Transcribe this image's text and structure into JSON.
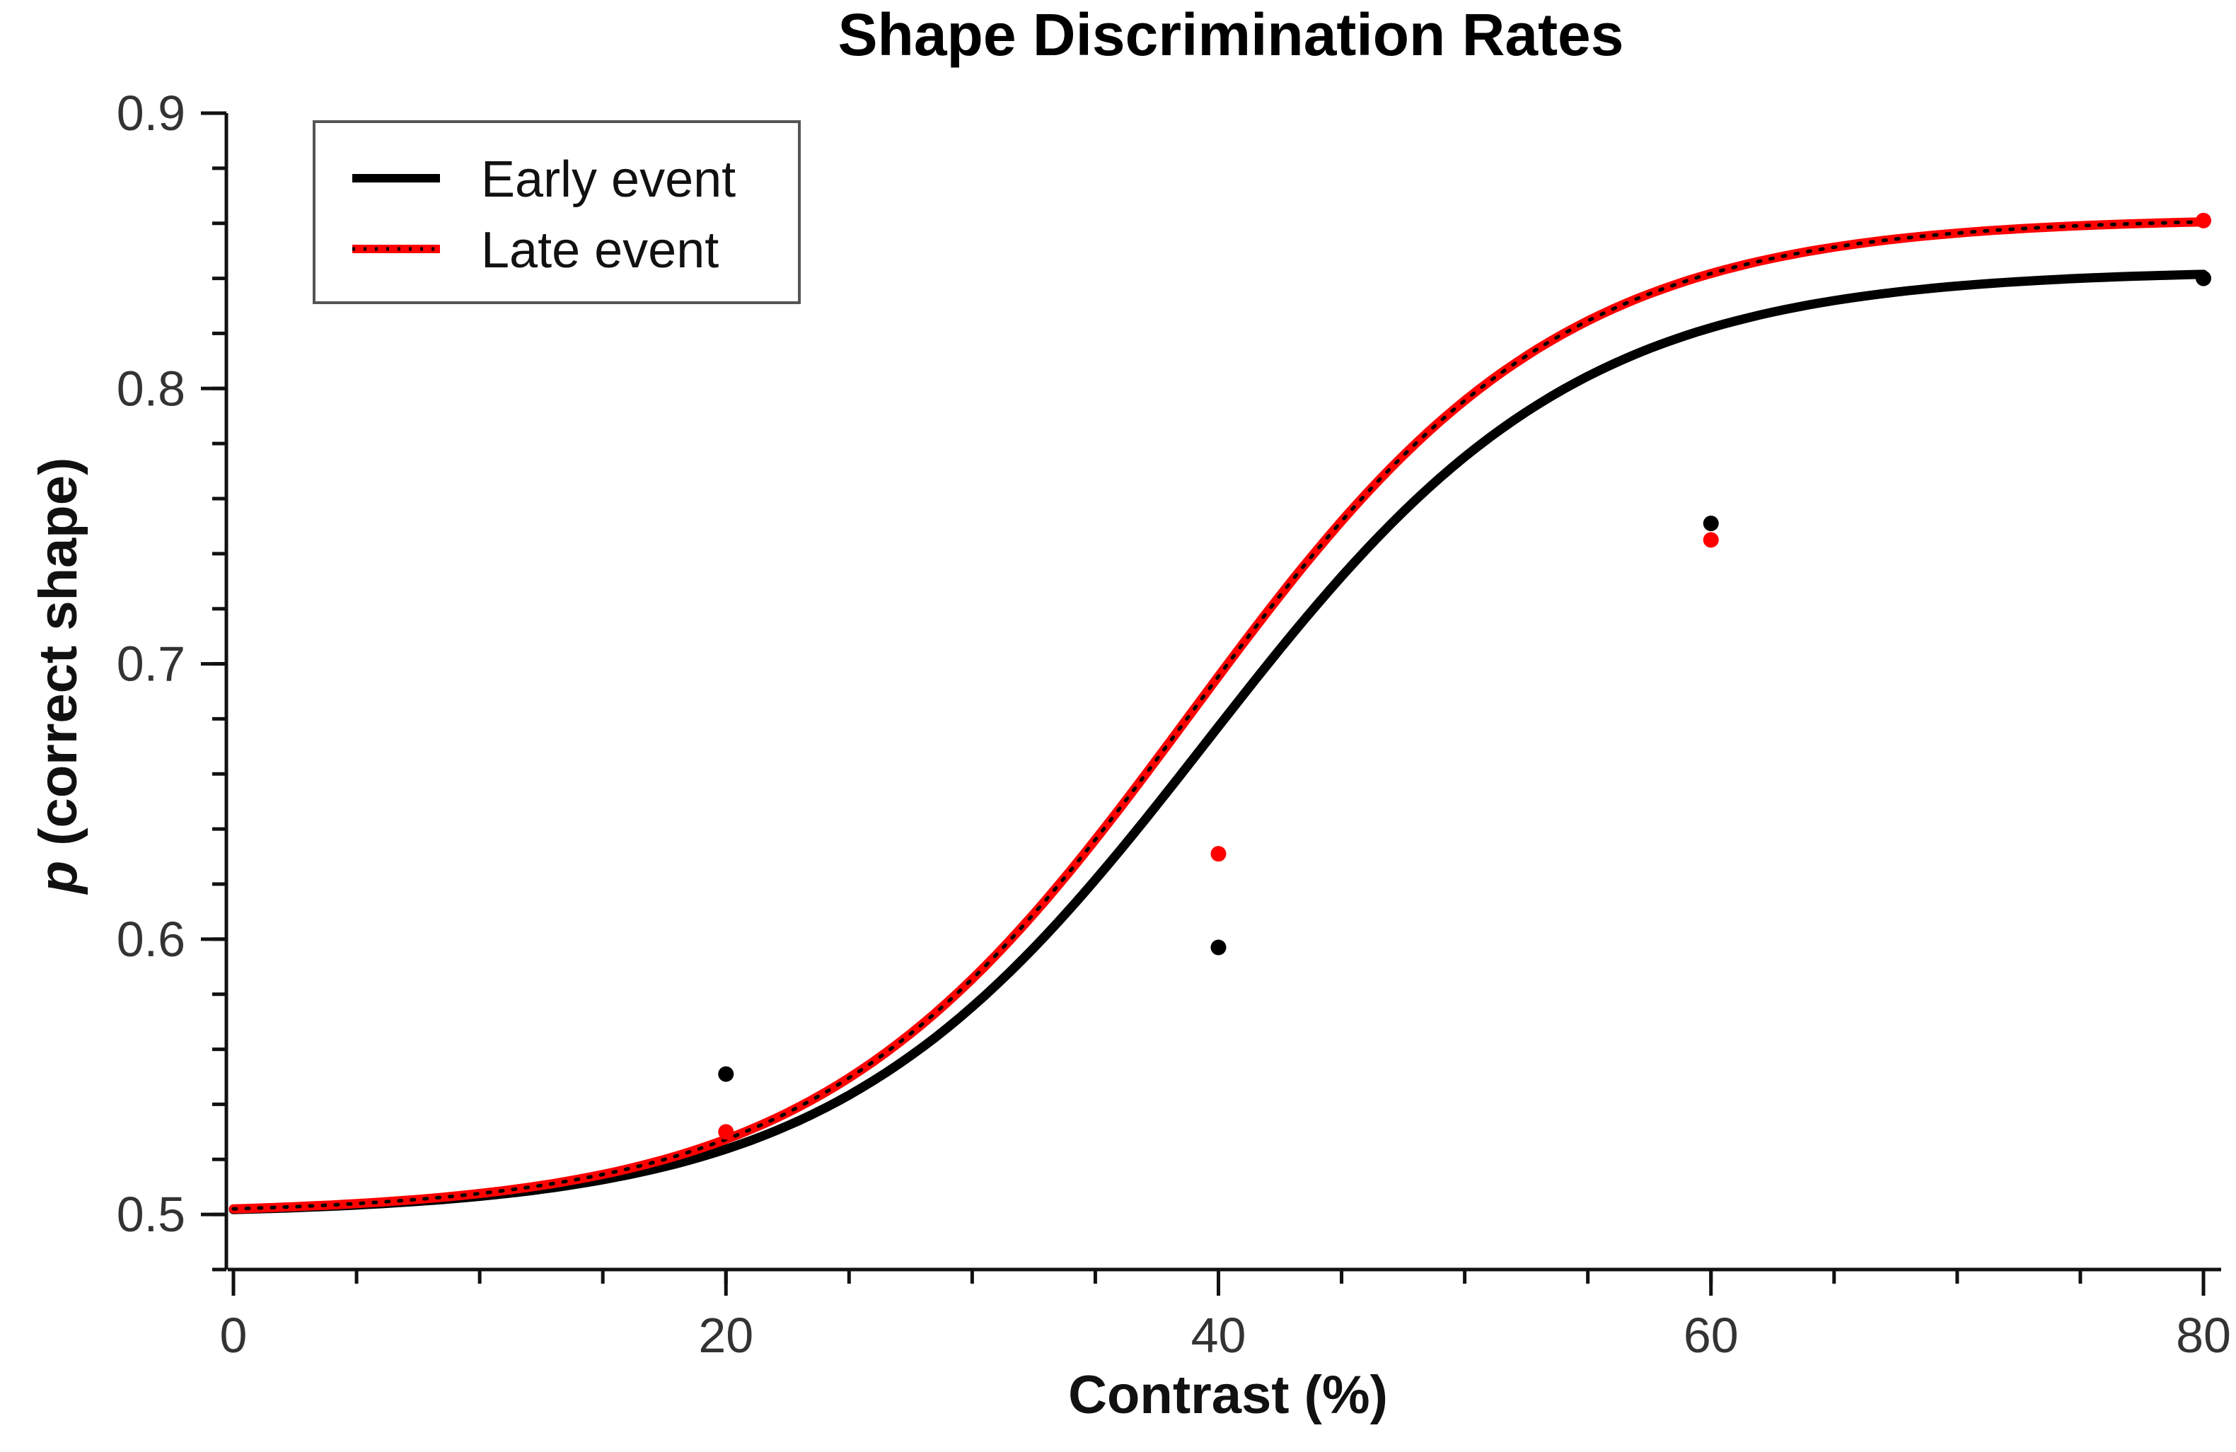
{
  "chart_data": {
    "type": "line",
    "title": "Shape Discrimination Rates",
    "xlabel": "Contrast (%)",
    "ylabel_prefix": "p",
    "ylabel_rest": " (correct shape)",
    "xlim": [
      0,
      80
    ],
    "ylim": [
      0.48,
      0.9
    ],
    "xticks": [
      0,
      20,
      40,
      60,
      80
    ],
    "xtick_labels": [
      "0",
      "20",
      "40",
      "60",
      "80"
    ],
    "x_minor_step": 5,
    "yticks": [
      0.5,
      0.6,
      0.7,
      0.8,
      0.9
    ],
    "ytick_labels": [
      "0.5",
      "0.6",
      "0.7",
      "0.8",
      "0.9"
    ],
    "y_minor_step": 0.02,
    "legend": {
      "position": "top-left",
      "entries": [
        "Early event",
        "Late event"
      ]
    },
    "series": [
      {
        "name": "Early event",
        "color": "#000000",
        "fit": {
          "base": 0.5,
          "max": 0.843,
          "midpoint": 39.5,
          "slope": 7.5
        },
        "points": [
          {
            "x": 20,
            "y": 0.551
          },
          {
            "x": 40,
            "y": 0.597
          },
          {
            "x": 60,
            "y": 0.751
          },
          {
            "x": 80,
            "y": 0.84
          }
        ]
      },
      {
        "name": "Late event",
        "color": "#ff0000",
        "fit": {
          "base": 0.5,
          "max": 0.862,
          "midpoint": 38.8,
          "slope": 7.5
        },
        "points": [
          {
            "x": 20,
            "y": 0.53
          },
          {
            "x": 40,
            "y": 0.631
          },
          {
            "x": 60,
            "y": 0.745
          },
          {
            "x": 80,
            "y": 0.861
          }
        ]
      }
    ]
  }
}
